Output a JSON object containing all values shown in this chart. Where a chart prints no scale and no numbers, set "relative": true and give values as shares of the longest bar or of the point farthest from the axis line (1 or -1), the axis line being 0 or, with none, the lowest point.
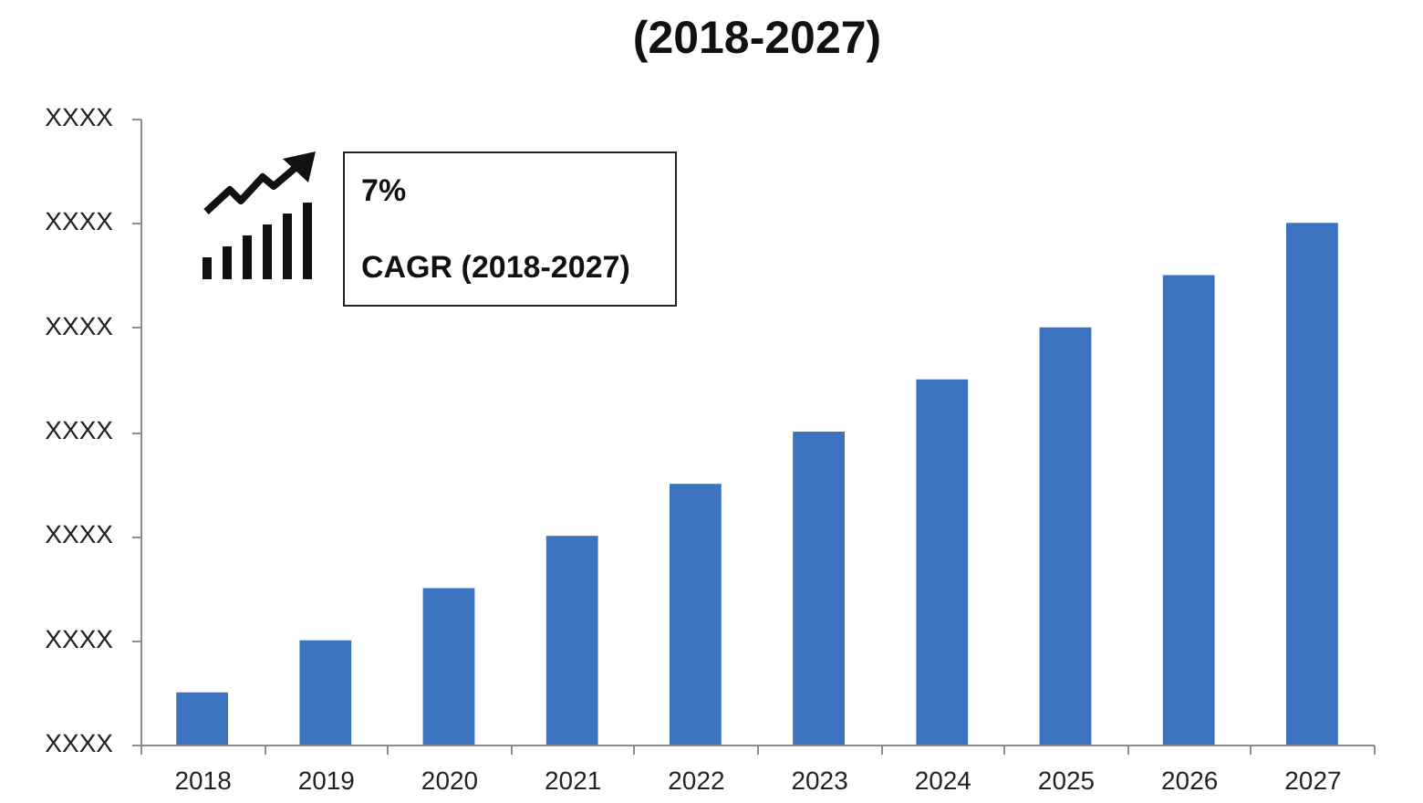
{
  "chart_data": {
    "type": "bar",
    "title": "(2018-2027)",
    "categories": [
      "2018",
      "2019",
      "2020",
      "2021",
      "2022",
      "2023",
      "2024",
      "2025",
      "2026",
      "2027"
    ],
    "values": [
      0.1,
      0.2,
      0.3,
      0.4,
      0.5,
      0.6,
      0.7,
      0.8,
      0.9,
      1.0
    ],
    "color": "#3b73c0",
    "relative": true,
    "annotations": [
      "7%",
      "CAGR (2018-2027)",
      "XXXX",
      "XXXX",
      "XXXX",
      "XXXX",
      "XXXX",
      "XXXX",
      "XXXX"
    ]
  }
}
